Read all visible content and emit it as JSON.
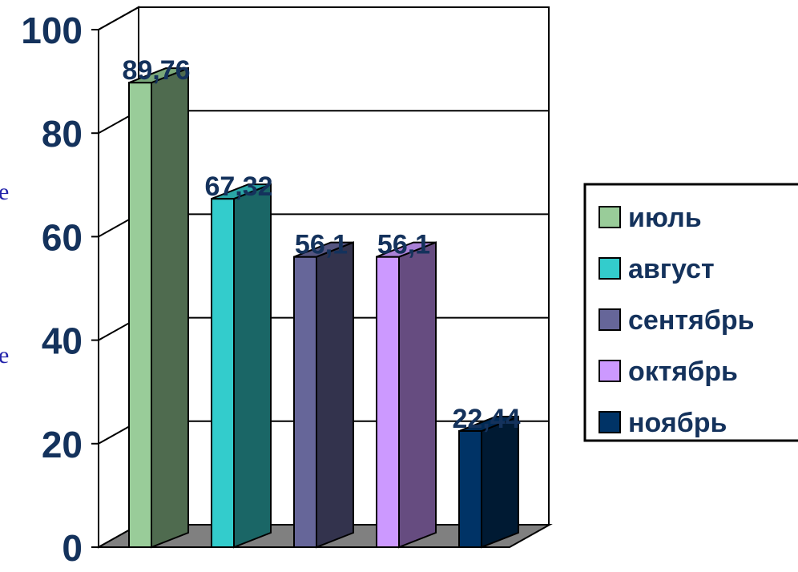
{
  "chart_data": {
    "type": "bar",
    "title": "",
    "xlabel": "",
    "ylabel": "",
    "ylim": [
      0,
      100
    ],
    "yticks": [
      0,
      20,
      40,
      60,
      80,
      100
    ],
    "grid": true,
    "legend_position": "right",
    "series": [
      {
        "name": "июль",
        "value": 89.76,
        "label": "89,76",
        "front": "#99cc99",
        "side": "#4f6b4f",
        "top": "#7aa87a"
      },
      {
        "name": "август",
        "value": 67.32,
        "label": "67,32",
        "front": "#33cccc",
        "side": "#1a6666",
        "top": "#2aa6a6"
      },
      {
        "name": "сентябрь",
        "value": 56.1,
        "label": "56,1",
        "front": "#666699",
        "side": "#33334d",
        "top": "#555580"
      },
      {
        "name": "октябрь",
        "value": 56.1,
        "label": "56,1",
        "front": "#cc99ff",
        "side": "#664c80",
        "top": "#aa80d6"
      },
      {
        "name": "ноябрь",
        "value": 22.44,
        "label": "22,44",
        "front": "#003366",
        "side": "#001a33",
        "top": "#002a55"
      }
    ]
  },
  "edge_text": [
    "е",
    "е"
  ]
}
